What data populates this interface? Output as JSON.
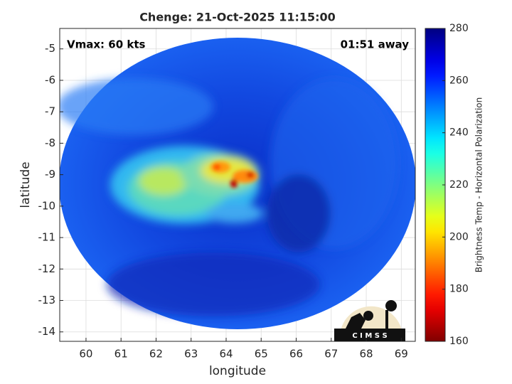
{
  "chart_data": {
    "type": "image",
    "title": "Chenge: 21-Oct-2025 11:15:00",
    "xlabel": "longitude",
    "ylabel": "latitude",
    "xlim": [
      59.25,
      69.4
    ],
    "ylim": [
      -14.3,
      -4.35
    ],
    "xticks": [
      60,
      61,
      62,
      63,
      64,
      65,
      66,
      67,
      68,
      69
    ],
    "yticks": [
      -14,
      -13,
      -12,
      -11,
      -10,
      -9,
      -8,
      -7,
      -6,
      -5
    ],
    "grid": true,
    "annotations": [
      "Vmax: 60 kts",
      "01:51 away"
    ],
    "logo": "C I M S S",
    "colorbar": {
      "label": "Brightness Temp - Horizontal Polarization",
      "lim": [
        160,
        280
      ],
      "ticks": [
        160,
        180,
        200,
        220,
        240,
        260,
        280
      ],
      "colormap": "jet_r"
    }
  }
}
